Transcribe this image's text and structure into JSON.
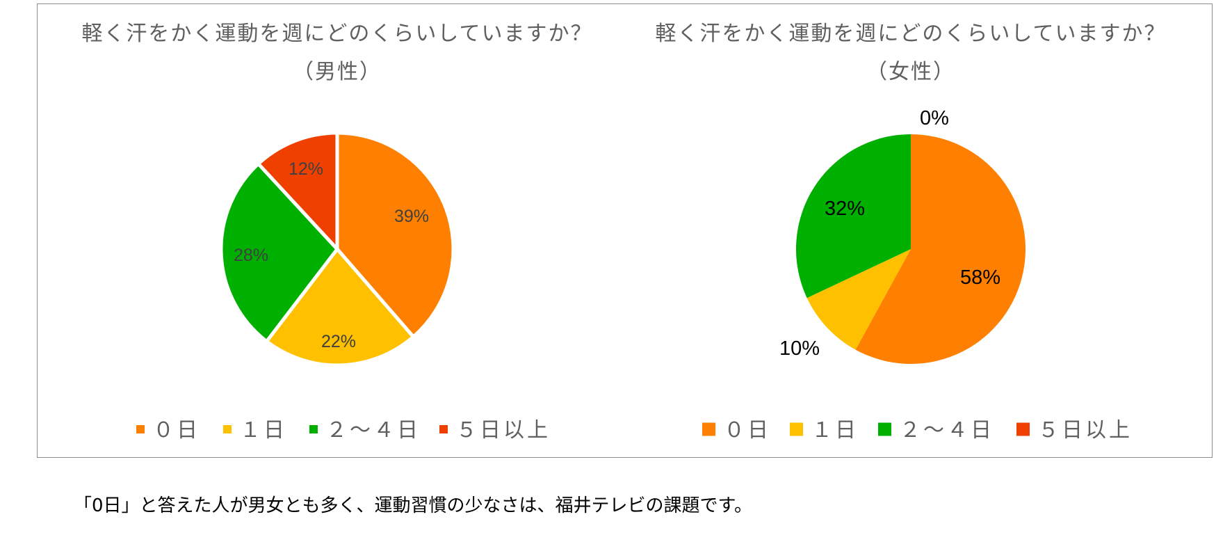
{
  "chart_data": [
    {
      "type": "pie",
      "title": "軽く汗をかく運動を週にどのくらいしていますか？",
      "subtitle": "（男性）",
      "categories": [
        "０日",
        "１日",
        "２～４日",
        "５日以上"
      ],
      "values": [
        39,
        22,
        28,
        12
      ],
      "labels": [
        "39%",
        "22%",
        "28%",
        "12%"
      ],
      "colors": [
        "#ff8000",
        "#ffc000",
        "#00b000",
        "#f04000"
      ],
      "legend_position": "bottom"
    },
    {
      "type": "pie",
      "title": "軽く汗をかく運動を週にどのくらいしていますか？",
      "subtitle": "（女性）",
      "categories": [
        "０日",
        "１日",
        "２～４日",
        "５日以上"
      ],
      "values": [
        58,
        10,
        32,
        0
      ],
      "labels": [
        "58%",
        "10%",
        "32%",
        "0%"
      ],
      "colors": [
        "#ff8000",
        "#ffc000",
        "#00b000",
        "#f04000"
      ],
      "legend_position": "bottom"
    }
  ],
  "caption": "「0日」と答えた人が男女とも多く、運動習慣の少なさは、福井テレビの課題です。"
}
